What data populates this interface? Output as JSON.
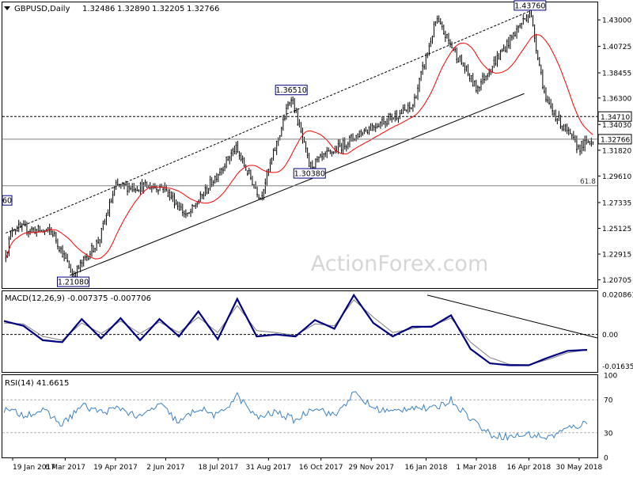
{
  "header": {
    "instrument": "GBPUSD,Daily",
    "open": "1.32486",
    "high": "1.32890",
    "low": "1.32205",
    "close": "1.32766"
  },
  "watermark": "ActionForex.com",
  "colors": {
    "background": "#ffffff",
    "candle": "#000000",
    "ma": "#ff0000",
    "macd": "#000080",
    "signal": "#808080",
    "rsi": "#3b82c4",
    "channel": "#000000",
    "border": "#000000",
    "watermark": "#d6d6d6"
  },
  "chart_data": [
    {
      "type": "line",
      "name": "main-price-panel",
      "title": "GBPUSD,Daily",
      "ylim": [
        1.2,
        1.445
      ],
      "y_ticks": [
        "1.43000",
        "1.40725",
        "1.38455",
        "1.36300",
        "1.34030",
        "1.31820",
        "1.29610",
        "1.27335",
        "1.25125",
        "1.22915",
        "1.20705"
      ],
      "x_ticks": [
        "19 Jan 2017",
        "6 Mar 2017",
        "19 Apr 2017",
        "2 Jun 2017",
        "18 Jul 2017",
        "31 Aug 2017",
        "16 Oct 2017",
        "29 Nov 2017",
        "16 Jan 2018",
        "1 Mar 2018",
        "16 Apr 2018",
        "30 May 2018"
      ],
      "price_keypoints": [
        {
          "x": "13 Jan 2017",
          "y": 1.2292
        },
        {
          "x": "19 Jan 2017",
          "y": 1.252
        },
        {
          "x": "23 Feb 2017",
          "y": 1.248
        },
        {
          "x": "13 Mar 2017",
          "y": 1.2108
        },
        {
          "x": "5 Apr 2017",
          "y": 1.242
        },
        {
          "x": "19 Apr 2017",
          "y": 1.287
        },
        {
          "x": "31 May 2017",
          "y": 1.287
        },
        {
          "x": "21 Jun 2017",
          "y": 1.261
        },
        {
          "x": "2 Aug 2017",
          "y": 1.32
        },
        {
          "x": "24 Aug 2017",
          "y": 1.278
        },
        {
          "x": "20 Sep 2017",
          "y": 1.3651
        },
        {
          "x": "6 Oct 2017",
          "y": 1.3038
        },
        {
          "x": "24 Nov 2017",
          "y": 1.336
        },
        {
          "x": "4 Jan 2018",
          "y": 1.355
        },
        {
          "x": "25 Jan 2018",
          "y": 1.43
        },
        {
          "x": "1 Mar 2018",
          "y": 1.3712
        },
        {
          "x": "17 Apr 2018",
          "y": 1.4376
        },
        {
          "x": "1 May 2018",
          "y": 1.36
        },
        {
          "x": "29 May 2018",
          "y": 1.3204
        },
        {
          "x": "12 Jun 2018",
          "y": 1.3277
        }
      ],
      "annotations": [
        {
          "label": "1.43760",
          "x": "17 Apr 2018",
          "y": 1.4376,
          "type": "high"
        },
        {
          "label": "1.36510",
          "x": "20 Sep 2017",
          "y": 1.3651,
          "type": "high"
        },
        {
          "label": "1.30380",
          "x": "6 Oct 2017",
          "y": 1.3038,
          "type": "low"
        },
        {
          "label": "1.21080",
          "x": "13 Mar 2017",
          "y": 1.2108,
          "type": "low"
        },
        {
          "label": "60",
          "x": "13 Jan 2017",
          "y": 1.2752,
          "type": "clipped"
        }
      ],
      "horizontal_levels": [
        {
          "value": 1.3471,
          "label": "1.34710",
          "style": "dashed"
        },
        {
          "value": 1.32766,
          "label": "1.32766",
          "style": "solid"
        },
        {
          "value": 1.2877,
          "label": "61.8",
          "style": "solid"
        }
      ],
      "trend_lines": [
        {
          "name": "lower-channel",
          "start": {
            "x": "10 Mar 2017",
            "y": 1.2108
          },
          "end": {
            "x": "12 Apr 2018",
            "y": 1.3668
          },
          "style": "solid"
        },
        {
          "name": "upper-channel",
          "start": {
            "x": "13 Jan 2017",
            "y": 1.2472
          },
          "end": {
            "x": "17 Apr 2018",
            "y": 1.4376
          },
          "style": "dashed"
        }
      ],
      "grid": false
    },
    {
      "type": "line",
      "name": "macd-panel",
      "title": "MACD(12,26,9) -0.007375 -0.007706",
      "ylim": [
        -0.0195,
        0.0225
      ],
      "y_ticks": [
        "0.020861",
        "0.00",
        "-0.016357"
      ],
      "series": [
        {
          "name": "MACD",
          "values": [
            0.007,
            0.0045,
            -0.003,
            -0.004,
            0.008,
            -0.002,
            0.0085,
            -0.003,
            0.008,
            -0.001,
            0.012,
            -0.0025,
            0.0185,
            -0.001,
            0.0,
            -0.001,
            0.0075,
            0.003,
            0.0205,
            0.006,
            -0.001,
            0.004,
            0.004,
            0.01,
            -0.0075,
            -0.015,
            -0.016,
            -0.016,
            -0.012,
            -0.0085,
            -0.008
          ]
        },
        {
          "name": "Signal",
          "values": [
            0.006,
            0.0055,
            -0.001,
            -0.003,
            0.006,
            0.0005,
            0.007,
            0.0005,
            0.0065,
            0.001,
            0.009,
            0.001,
            0.015,
            0.002,
            0.001,
            -0.0005,
            0.0055,
            0.0045,
            0.018,
            0.009,
            0.001,
            0.003,
            0.0045,
            0.0085,
            -0.004,
            -0.012,
            -0.0155,
            -0.0158,
            -0.013,
            -0.0095,
            -0.008
          ]
        }
      ],
      "grid": false
    },
    {
      "type": "line",
      "name": "rsi-panel",
      "title": "RSI(14) 41.6615",
      "ylim": [
        0,
        100
      ],
      "y_ticks": [
        "100",
        "70",
        "30",
        "0"
      ],
      "series": [
        {
          "name": "RSI",
          "values": [
            58,
            52,
            57,
            40,
            63,
            55,
            60,
            48,
            65,
            42,
            60,
            50,
            75,
            48,
            55,
            45,
            62,
            50,
            78,
            60,
            55,
            62,
            58,
            70,
            48,
            28,
            25,
            28,
            24,
            35,
            42
          ]
        }
      ],
      "levels": [
        70,
        30
      ],
      "grid": false
    }
  ]
}
